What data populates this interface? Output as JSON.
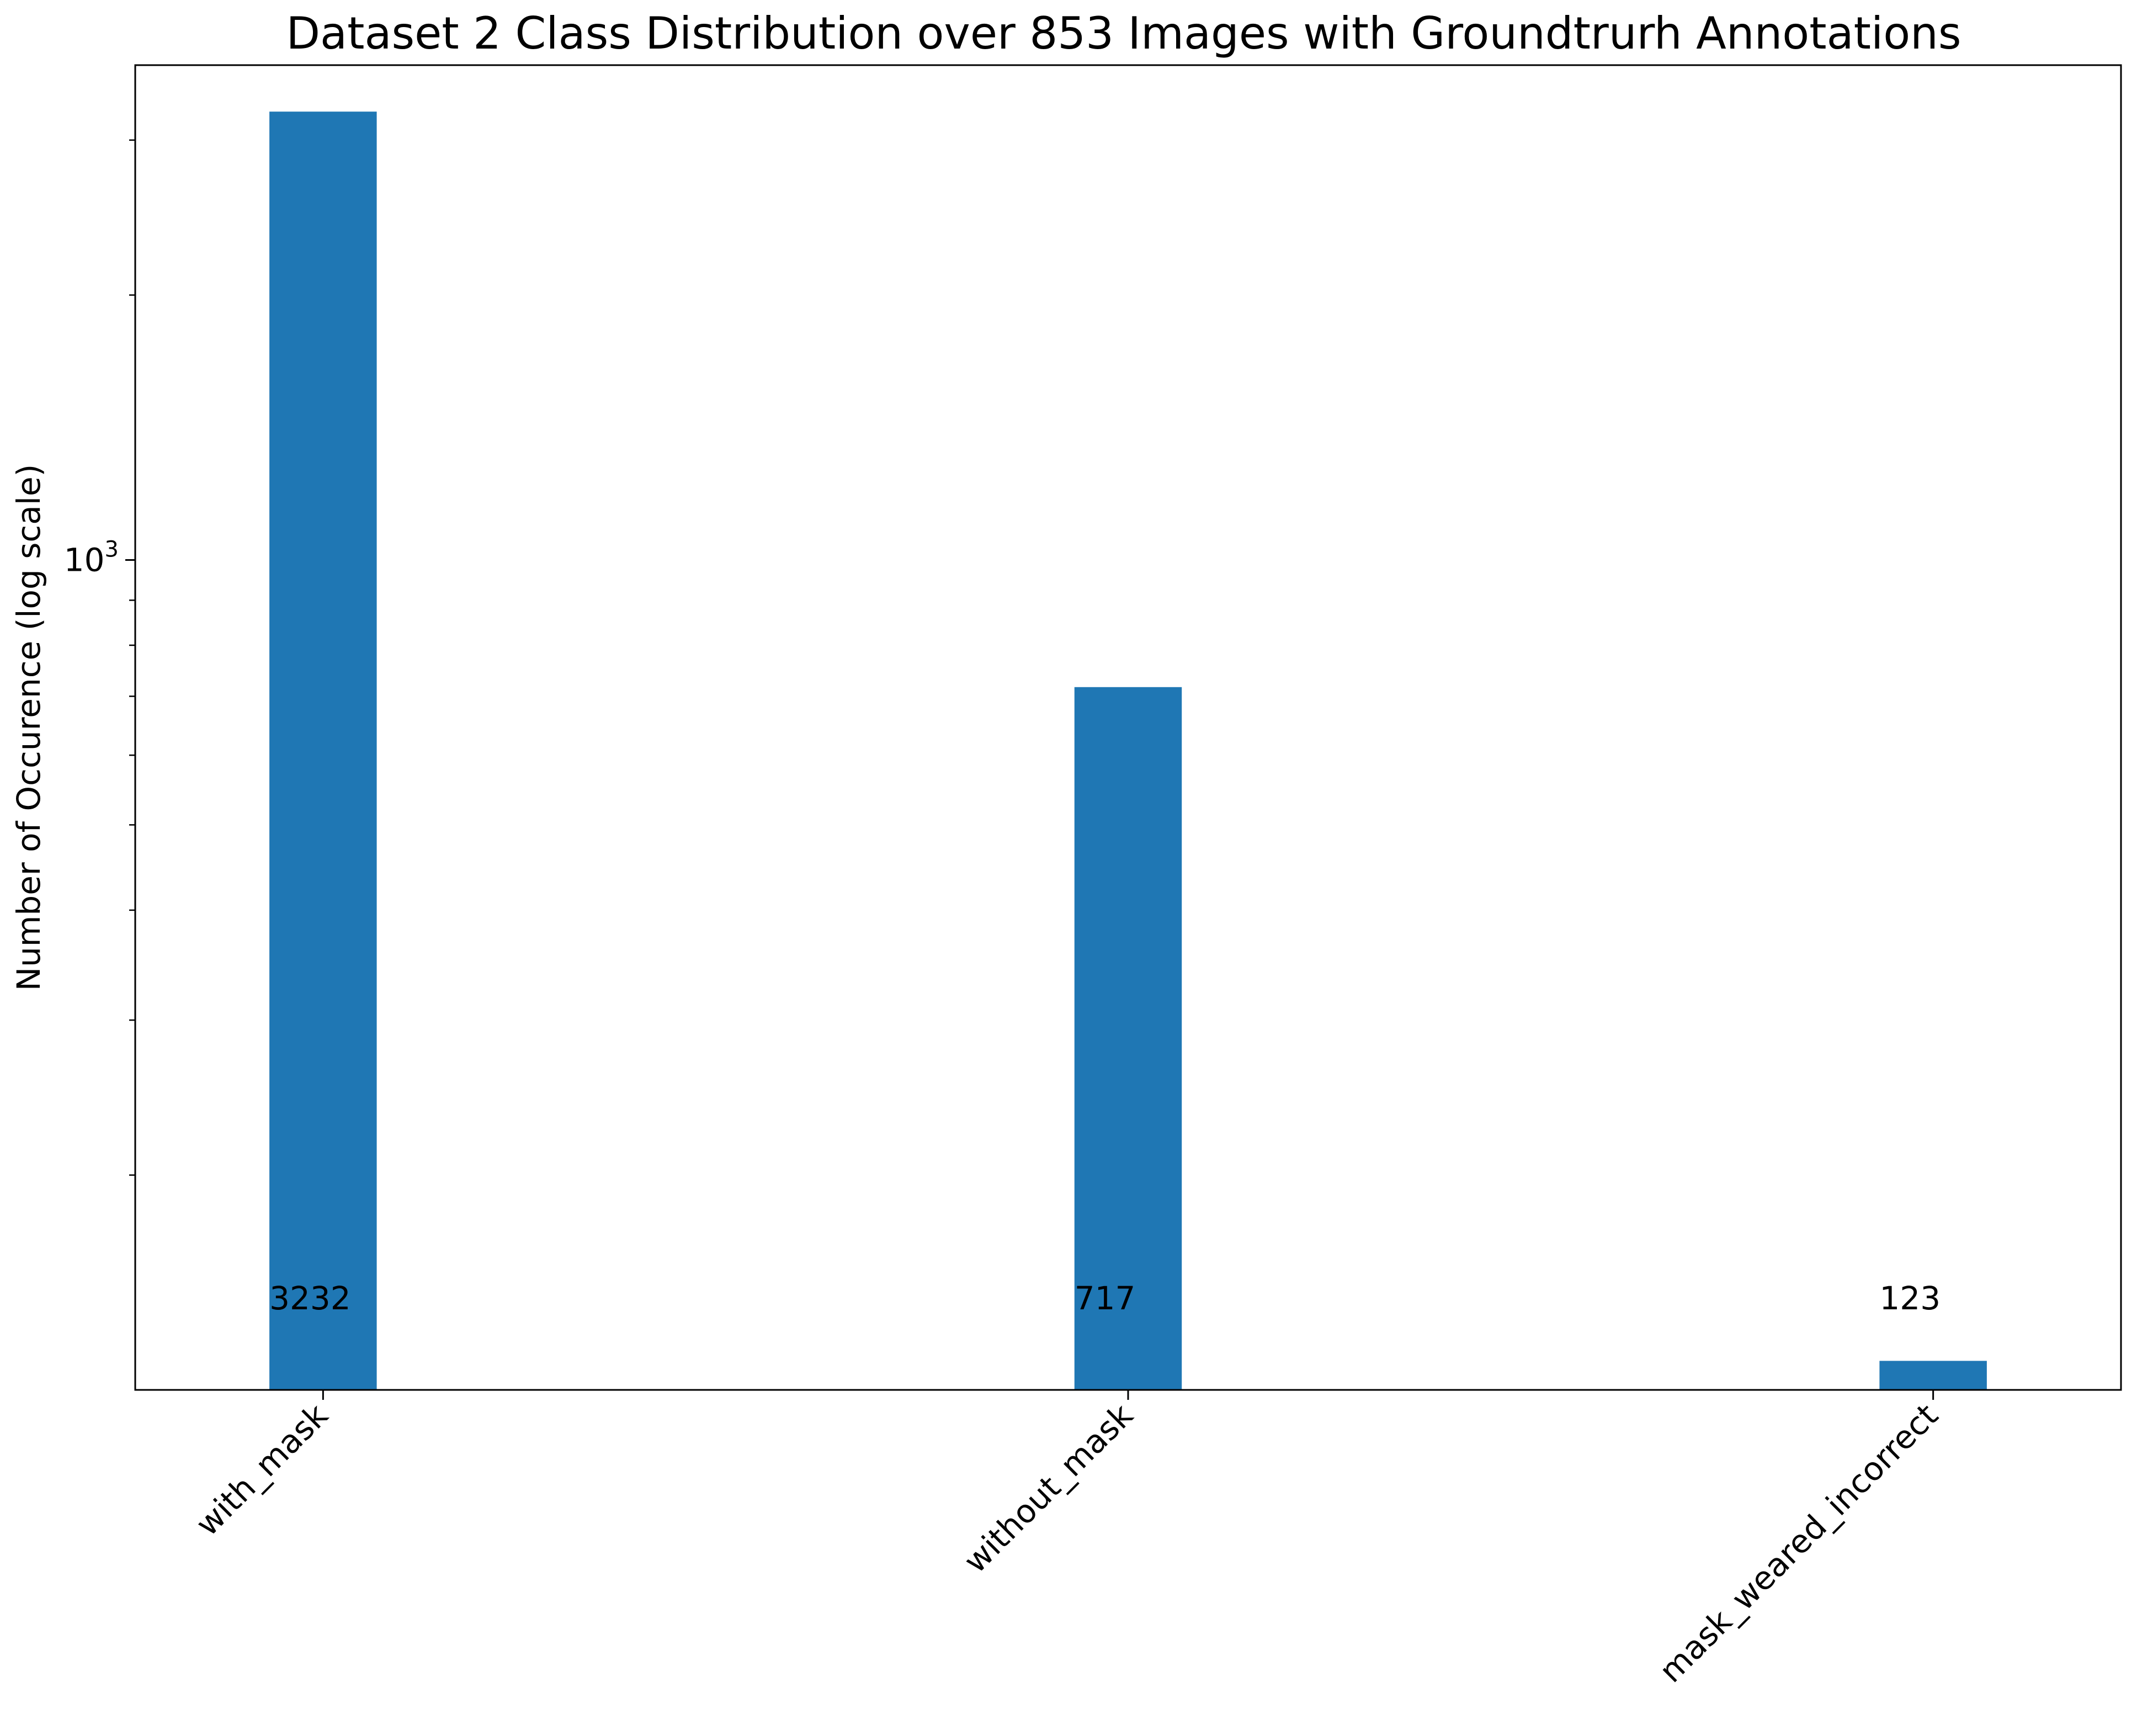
{
  "chart_data": {
    "type": "bar",
    "title": "Dataset 2 Class Distribution over 853 Images with Groundtrurh Annotations",
    "xlabel": "",
    "ylabel": "Number of Occurence (log scale)",
    "yscale": "log",
    "ylim": [
      114,
      3650
    ],
    "yticks_major": [
      {
        "value": 1000,
        "label_base": "10",
        "label_exp": "3"
      }
    ],
    "yticks_minor": [
      200,
      300,
      400,
      500,
      600,
      700,
      800,
      900,
      2000,
      3000
    ],
    "categories": [
      "with_mask",
      "without_mask",
      "mask_weared_incorrect"
    ],
    "values": [
      3232,
      717,
      123
    ],
    "data_labels": [
      "3232",
      "717",
      "123"
    ],
    "grid": false,
    "legend": "none",
    "bar_color": "#1f77b4"
  }
}
